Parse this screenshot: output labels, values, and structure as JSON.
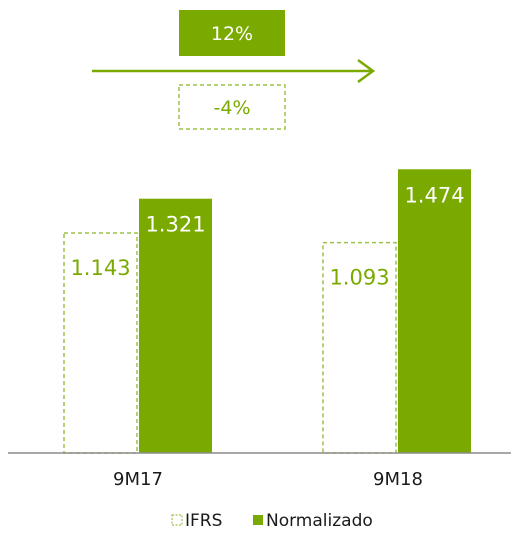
{
  "chart_data": {
    "type": "bar",
    "categories": [
      "9M17",
      "9M18"
    ],
    "series": [
      {
        "name": "IFRS",
        "values": [
          1.143,
          1.093
        ],
        "labels": [
          "1.143",
          "1.093"
        ],
        "style": "dashed-outline"
      },
      {
        "name": "Normalizado",
        "values": [
          1.321,
          1.474
        ],
        "labels": [
          "1.321",
          "1.474"
        ],
        "style": "solid"
      }
    ],
    "ylim": [
      0,
      1.6
    ],
    "grid": false,
    "legend": "bottom-center",
    "annotations": [
      {
        "text": "12%",
        "style": "solid",
        "series": "Normalizado"
      },
      {
        "text": "-4%",
        "style": "dashed-outline",
        "series": "IFRS"
      }
    ],
    "arrow": "right",
    "colors": {
      "green": "#7aaa00",
      "dashed": "#9bc24a",
      "label_on_bar": "#ffffff",
      "axis": "#8c8c8c",
      "text": "#1a1a1a"
    }
  }
}
